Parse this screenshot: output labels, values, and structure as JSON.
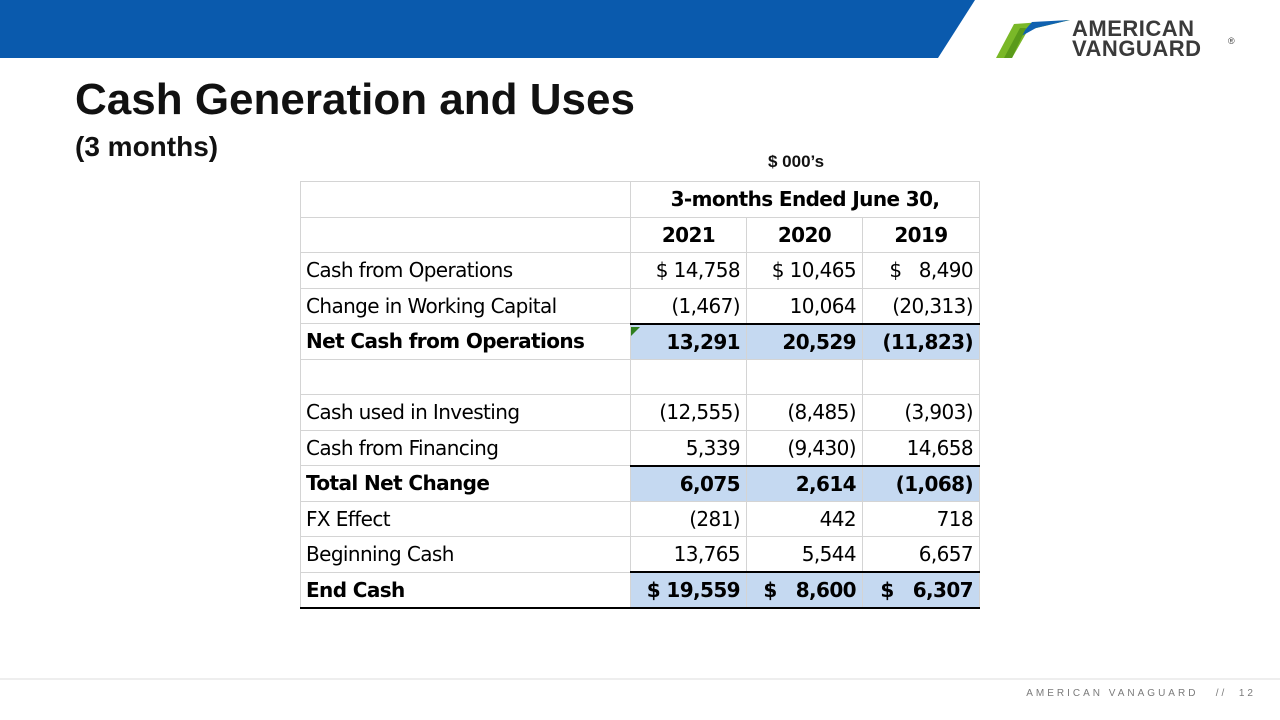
{
  "header": {
    "logo_line1": "AMERICAN",
    "logo_line2": "VANGUARD",
    "logo_reg": "®"
  },
  "slide": {
    "title": "Cash Generation and Uses",
    "subtitle": "(3 months)",
    "units": "$ 000’s"
  },
  "table": {
    "period_header": "3-months Ended June 30,",
    "years": [
      "2021",
      "2020",
      "2019"
    ],
    "rows": [
      {
        "label": "Cash from Operations",
        "values": [
          "$ 14,758",
          "$ 10,465",
          "$   8,490"
        ]
      },
      {
        "label": "Change in Working Capital",
        "values": [
          "(1,467)",
          "10,064",
          "(20,313)"
        ]
      },
      {
        "label": "Net Cash from Operations",
        "values": [
          "13,291",
          "20,529",
          "(11,823)"
        ]
      },
      {
        "label": "",
        "values": [
          "",
          "",
          ""
        ]
      },
      {
        "label": "Cash used in Investing",
        "values": [
          "(12,555)",
          "(8,485)",
          "(3,903)"
        ]
      },
      {
        "label": "Cash from Financing",
        "values": [
          "5,339",
          "(9,430)",
          "14,658"
        ]
      },
      {
        "label": "Total Net Change",
        "values": [
          "6,075",
          "2,614",
          "(1,068)"
        ]
      },
      {
        "label": "FX Effect",
        "values": [
          "(281)",
          "442",
          "718"
        ]
      },
      {
        "label": "Beginning Cash",
        "values": [
          "13,765",
          "5,544",
          "6,657"
        ]
      },
      {
        "label": "End Cash",
        "values": [
          "$ 19,559",
          "$   8,600",
          "$   6,307"
        ]
      }
    ]
  },
  "footer": {
    "text": "AMERICAN VANAGUARD   //  12"
  },
  "colors": {
    "top_bar": "#0a5aad",
    "total_row_fill": "#c5d9f1",
    "logo_green": "#7ab828",
    "logo_blue": "#1062b0"
  }
}
